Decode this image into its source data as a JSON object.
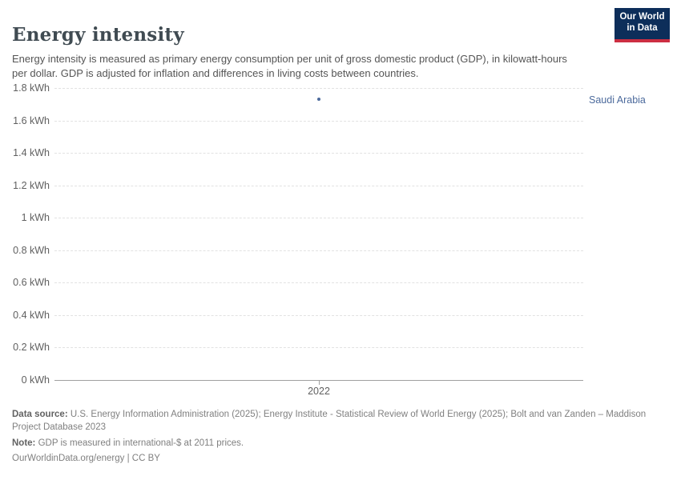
{
  "header": {
    "title": "Energy intensity",
    "subtitle": "Energy intensity is measured as primary energy consumption per unit of gross domestic product (GDP), in kilowatt-hours per dollar. GDP is adjusted for inflation and differences in living costs between countries.",
    "logo": {
      "line1": "Our World",
      "line2": "in Data"
    }
  },
  "chart_data": {
    "type": "scatter",
    "title": "Energy intensity",
    "unit": "kWh per dollar",
    "x": [
      2022
    ],
    "series": [
      {
        "name": "Saudi Arabia",
        "values": [
          1.73
        ],
        "color": "#4C6A9C"
      }
    ],
    "ylim": [
      0,
      1.8
    ],
    "yticks": [
      "0 kWh",
      "0.2 kWh",
      "0.4 kWh",
      "0.6 kWh",
      "0.8 kWh",
      "1 kWh",
      "1.2 kWh",
      "1.4 kWh",
      "1.6 kWh",
      "1.8 kWh"
    ],
    "xticks": [
      "2022"
    ],
    "grid": "horizontal-dashed",
    "legend_position": "right-of-plot"
  },
  "footer": {
    "data_source_label": "Data source:",
    "data_source_text": " U.S. Energy Information Administration (2025); Energy Institute - Statistical Review of World Energy (2025); Bolt and van Zanden – Maddison Project Database 2023",
    "note_label": "Note:",
    "note_text": " GDP is measured in international-$ at 2011 prices.",
    "attribution": "OurWorldinData.org/energy | CC BY"
  },
  "colors": {
    "accent_blue": "#4C6A9C",
    "logo_navy": "#0d2e5a",
    "logo_red": "#cc2e42",
    "grid": "#e2e2e2",
    "axis": "#a0a0a0",
    "tick_text": "#606060"
  }
}
